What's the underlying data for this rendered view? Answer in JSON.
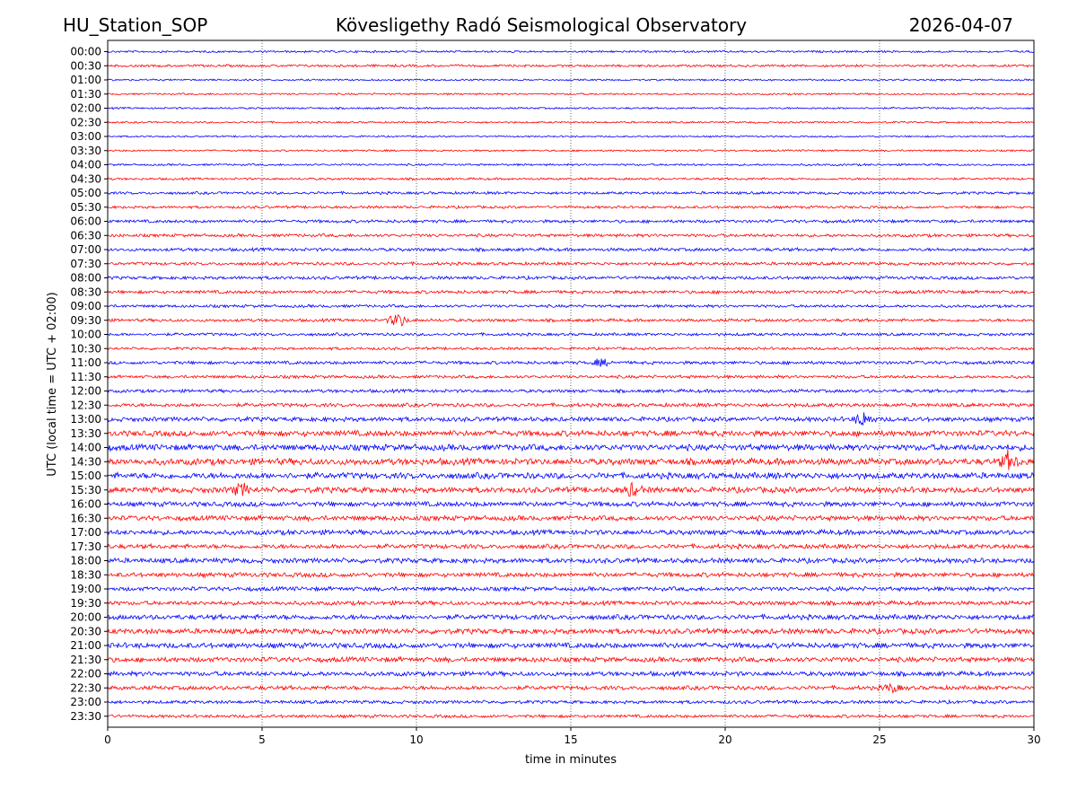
{
  "header": {
    "station": "HU_Station_SOP",
    "observatory": "Kövesligethy Radó Seismological Observatory",
    "date": "2026-04-07"
  },
  "chart_data": {
    "type": "line",
    "title": "Kövesligethy Radó Seismological Observatory",
    "xlabel": "time in minutes",
    "ylabel": "UTC (local time = UTC + 02:00)",
    "xlim": [
      0,
      30
    ],
    "x_ticks": [
      0,
      5,
      10,
      15,
      20,
      25,
      30
    ],
    "x_tick_labels": [
      "0",
      "5",
      "10",
      "15",
      "20",
      "25",
      "30"
    ],
    "vertical_gridlines": "dotted at each 5-minute tick",
    "alternating_colors": [
      "#0000ff",
      "#ff0000"
    ],
    "traces": [
      {
        "label": "00:00",
        "color": "#0000ff",
        "amplitude": 1.0
      },
      {
        "label": "00:30",
        "color": "#ff0000",
        "amplitude": 1.2
      },
      {
        "label": "01:00",
        "color": "#0000ff",
        "amplitude": 0.9
      },
      {
        "label": "01:30",
        "color": "#ff0000",
        "amplitude": 0.9
      },
      {
        "label": "02:00",
        "color": "#0000ff",
        "amplitude": 0.9
      },
      {
        "label": "02:30",
        "color": "#ff0000",
        "amplitude": 0.9
      },
      {
        "label": "03:00",
        "color": "#0000ff",
        "amplitude": 0.8
      },
      {
        "label": "03:30",
        "color": "#ff0000",
        "amplitude": 0.9
      },
      {
        "label": "04:00",
        "color": "#0000ff",
        "amplitude": 1.0
      },
      {
        "label": "04:30",
        "color": "#ff0000",
        "amplitude": 1.1
      },
      {
        "label": "05:00",
        "color": "#0000ff",
        "amplitude": 1.3
      },
      {
        "label": "05:30",
        "color": "#ff0000",
        "amplitude": 1.3
      },
      {
        "label": "06:00",
        "color": "#0000ff",
        "amplitude": 1.5
      },
      {
        "label": "06:30",
        "color": "#ff0000",
        "amplitude": 1.5
      },
      {
        "label": "07:00",
        "color": "#0000ff",
        "amplitude": 1.6
      },
      {
        "label": "07:30",
        "color": "#ff0000",
        "amplitude": 1.5
      },
      {
        "label": "08:00",
        "color": "#0000ff",
        "amplitude": 1.6
      },
      {
        "label": "08:30",
        "color": "#ff0000",
        "amplitude": 1.6
      },
      {
        "label": "09:00",
        "color": "#0000ff",
        "amplitude": 1.4
      },
      {
        "label": "09:30",
        "color": "#ff0000",
        "amplitude": 1.5
      },
      {
        "label": "10:00",
        "color": "#0000ff",
        "amplitude": 1.4
      },
      {
        "label": "10:30",
        "color": "#ff0000",
        "amplitude": 1.3
      },
      {
        "label": "11:00",
        "color": "#0000ff",
        "amplitude": 1.6
      },
      {
        "label": "11:30",
        "color": "#ff0000",
        "amplitude": 1.5
      },
      {
        "label": "12:00",
        "color": "#0000ff",
        "amplitude": 1.6
      },
      {
        "label": "12:30",
        "color": "#ff0000",
        "amplitude": 1.8
      },
      {
        "label": "13:00",
        "color": "#0000ff",
        "amplitude": 2.2
      },
      {
        "label": "13:30",
        "color": "#ff0000",
        "amplitude": 2.8
      },
      {
        "label": "14:00",
        "color": "#0000ff",
        "amplitude": 3.0
      },
      {
        "label": "14:30",
        "color": "#ff0000",
        "amplitude": 3.2
      },
      {
        "label": "15:00",
        "color": "#0000ff",
        "amplitude": 3.0
      },
      {
        "label": "15:30",
        "color": "#ff0000",
        "amplitude": 2.8
      },
      {
        "label": "16:00",
        "color": "#0000ff",
        "amplitude": 2.4
      },
      {
        "label": "16:30",
        "color": "#ff0000",
        "amplitude": 2.4
      },
      {
        "label": "17:00",
        "color": "#0000ff",
        "amplitude": 2.4
      },
      {
        "label": "17:30",
        "color": "#ff0000",
        "amplitude": 2.2
      },
      {
        "label": "18:00",
        "color": "#0000ff",
        "amplitude": 2.4
      },
      {
        "label": "18:30",
        "color": "#ff0000",
        "amplitude": 2.2
      },
      {
        "label": "19:00",
        "color": "#0000ff",
        "amplitude": 2.0
      },
      {
        "label": "19:30",
        "color": "#ff0000",
        "amplitude": 2.0
      },
      {
        "label": "20:00",
        "color": "#0000ff",
        "amplitude": 2.4
      },
      {
        "label": "20:30",
        "color": "#ff0000",
        "amplitude": 2.6
      },
      {
        "label": "21:00",
        "color": "#0000ff",
        "amplitude": 2.6
      },
      {
        "label": "21:30",
        "color": "#ff0000",
        "amplitude": 2.4
      },
      {
        "label": "22:00",
        "color": "#0000ff",
        "amplitude": 2.2
      },
      {
        "label": "22:30",
        "color": "#ff0000",
        "amplitude": 2.0
      },
      {
        "label": "23:00",
        "color": "#0000ff",
        "amplitude": 1.6
      },
      {
        "label": "23:30",
        "color": "#ff0000",
        "amplitude": 1.5
      }
    ],
    "events": [
      {
        "trace": "09:30",
        "minute": 9.4,
        "strength": 5
      },
      {
        "trace": "11:00",
        "minute": 16.0,
        "strength": 2
      },
      {
        "trace": "13:00",
        "minute": 24.5,
        "strength": 3
      },
      {
        "trace": "14:30",
        "minute": 29.2,
        "strength": 2.5
      },
      {
        "trace": "15:30",
        "minute": 4.3,
        "strength": 2
      },
      {
        "trace": "15:30",
        "minute": 17.0,
        "strength": 2
      },
      {
        "trace": "22:30",
        "minute": 25.4,
        "strength": 2
      }
    ]
  }
}
